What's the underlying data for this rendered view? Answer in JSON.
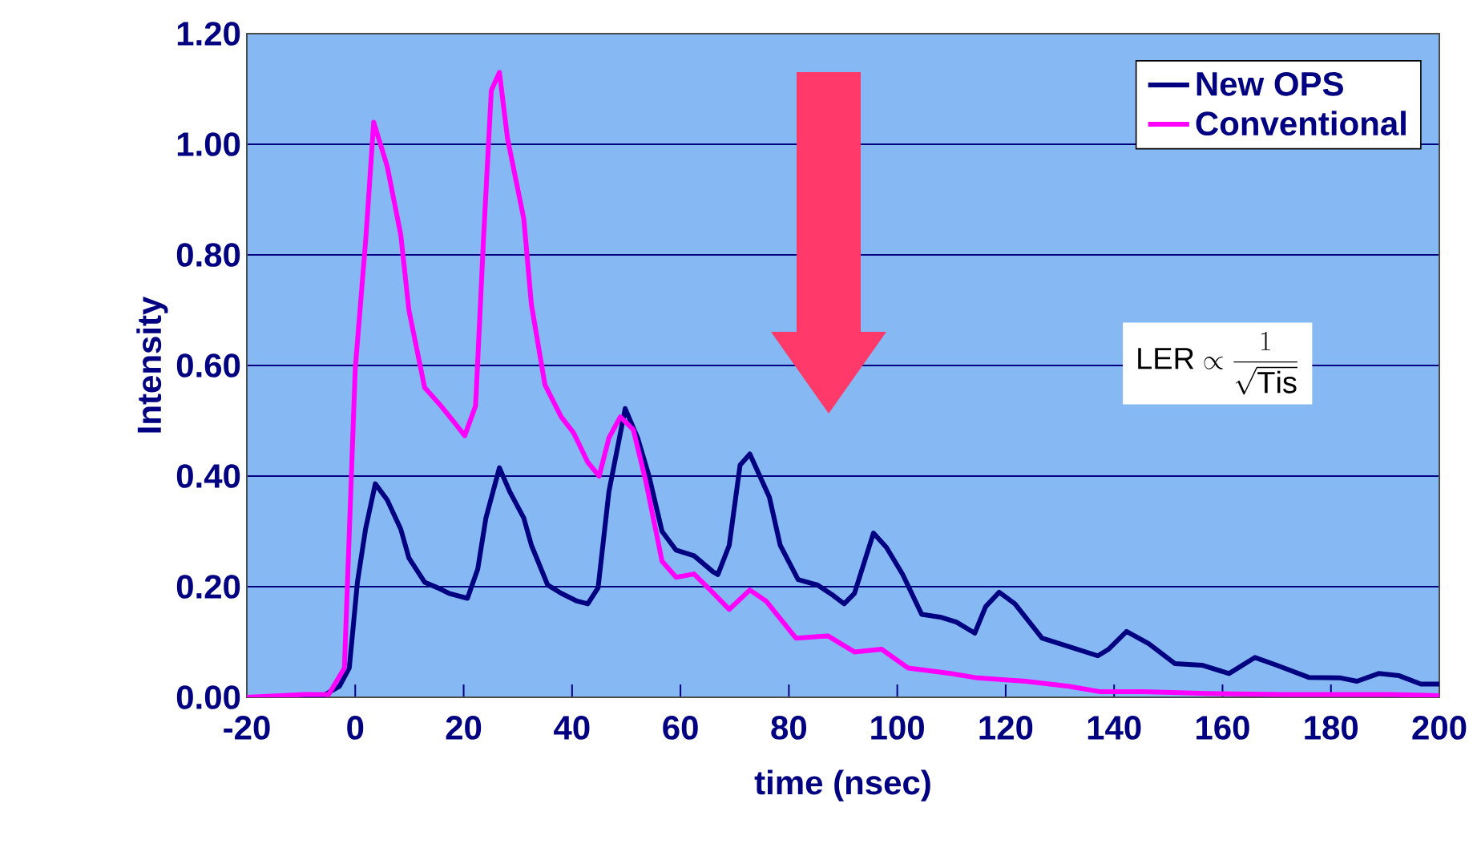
{
  "chart_data": {
    "type": "line",
    "xlabel": "time (nsec)",
    "ylabel": "Intensity",
    "xlim": [
      -20,
      200
    ],
    "ylim": [
      0,
      1.2
    ],
    "xticks": [
      -20,
      0,
      20,
      40,
      60,
      80,
      100,
      120,
      140,
      160,
      180,
      200
    ],
    "yticks": [
      {
        "value": 0,
        "label": "0.00"
      },
      {
        "value": 0.2,
        "label": "0.20"
      },
      {
        "value": 0.4,
        "label": "0.40"
      },
      {
        "value": 0.6,
        "label": "0.60"
      },
      {
        "value": 0.8,
        "label": "0.80"
      },
      {
        "value": 1.0,
        "label": "1.00"
      },
      {
        "value": 1.2,
        "label": "1.20"
      }
    ],
    "grid": "y",
    "legend": "top right",
    "marker": "none",
    "line_style": "solid",
    "annotations": [
      "\\mathrm{LER} \\propto \\frac{1}{\\sqrt{\\mathrm{Tis}}}"
    ],
    "series": [
      {
        "name": "New OPS",
        "color": "#000080",
        "x": [
          -20,
          -6.4,
          -2.9,
          -1.1,
          0.4,
          1.9,
          3.7,
          5.9,
          8.4,
          9.9,
          12.8,
          15.2,
          17.3,
          20.7,
          22.6,
          24.1,
          26.6,
          28.5,
          31.1,
          32.5,
          35.5,
          38.0,
          40.9,
          42.9,
          44.8,
          46.8,
          49.8,
          52.1,
          54.2,
          56.6,
          59.2,
          62.5,
          66.0,
          66.9,
          69.0,
          71.0,
          72.8,
          76.4,
          78.4,
          81.7,
          85.3,
          88.2,
          90.2,
          92.1,
          95.6,
          98.0,
          101.0,
          104.5,
          107.9,
          110.9,
          114.3,
          116.3,
          118.8,
          121.7,
          126.7,
          131.6,
          137.0,
          139.0,
          142.3,
          146.4,
          151.2,
          156.2,
          161.2,
          166.0,
          170.0,
          175.9,
          181.8,
          184.8,
          188.8,
          192.6,
          196.6,
          200
        ],
        "values": [
          0,
          0,
          0.02,
          0.053,
          0.208,
          0.304,
          0.386,
          0.357,
          0.304,
          0.252,
          0.208,
          0.198,
          0.188,
          0.179,
          0.232,
          0.324,
          0.415,
          0.372,
          0.324,
          0.275,
          0.203,
          0.188,
          0.174,
          0.169,
          0.198,
          0.372,
          0.522,
          0.469,
          0.4,
          0.3,
          0.266,
          0.256,
          0.227,
          0.222,
          0.275,
          0.42,
          0.44,
          0.362,
          0.275,
          0.213,
          0.203,
          0.184,
          0.169,
          0.188,
          0.297,
          0.271,
          0.222,
          0.15,
          0.145,
          0.136,
          0.116,
          0.164,
          0.19,
          0.169,
          0.107,
          0.092,
          0.075,
          0.087,
          0.119,
          0.097,
          0.061,
          0.058,
          0.043,
          0.072,
          0.058,
          0.036,
          0.035,
          0.029,
          0.043,
          0.039,
          0.024,
          0.024
        ]
      },
      {
        "name": "Conventional",
        "color": "#ff00ff",
        "x": [
          -20,
          -9.4,
          -4.9,
          -2.0,
          0.0,
          2.0,
          3.4,
          5.9,
          8.4,
          9.9,
          12.8,
          15.8,
          18.2,
          20.2,
          22.2,
          23.7,
          25.1,
          26.6,
          28.1,
          31.1,
          32.5,
          35.0,
          38.0,
          40.3,
          42.9,
          45.0,
          46.8,
          48.9,
          51.3,
          53.6,
          56.6,
          59.2,
          62.5,
          65.5,
          69.0,
          72.8,
          75.8,
          81.3,
          87.2,
          92.1,
          97.1,
          102.0,
          109.8,
          114.8,
          123.7,
          131.6,
          137.5,
          145.3,
          157.1,
          171.0,
          190.8,
          200
        ],
        "values": [
          0,
          0.005,
          0.005,
          0.053,
          0.594,
          0.836,
          1.04,
          0.96,
          0.836,
          0.7,
          0.56,
          0.527,
          0.498,
          0.473,
          0.527,
          0.836,
          1.097,
          1.13,
          1.01,
          0.865,
          0.71,
          0.565,
          0.507,
          0.478,
          0.425,
          0.4,
          0.469,
          0.507,
          0.484,
          0.391,
          0.246,
          0.217,
          0.223,
          0.194,
          0.159,
          0.194,
          0.174,
          0.107,
          0.111,
          0.082,
          0.087,
          0.053,
          0.043,
          0.035,
          0.029,
          0.02,
          0.01,
          0.01,
          0.007,
          0.005,
          0.005,
          0.003
        ]
      }
    ]
  }
}
